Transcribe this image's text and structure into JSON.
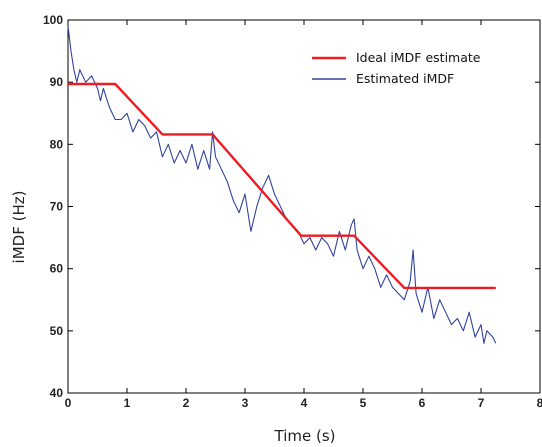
{
  "chart_data": {
    "type": "line",
    "title": "",
    "xlabel": "Time (s)",
    "ylabel": "iMDF (Hz)",
    "xlim": [
      0,
      8
    ],
    "ylim": [
      40,
      100
    ],
    "xticks": [
      "0",
      "1",
      "2",
      "3",
      "4",
      "5",
      "6",
      "7",
      "8"
    ],
    "yticks": [
      "40",
      "50",
      "60",
      "70",
      "80",
      "90",
      "100"
    ],
    "grid": false,
    "legend_position": "top-right",
    "series": [
      {
        "name": "Ideal iMDF estimate",
        "color": "#ee1c24",
        "x": [
          0,
          0.8,
          1.6,
          2.45,
          3.95,
          4.85,
          5.7,
          7.25
        ],
        "y": [
          89.7,
          89.7,
          81.6,
          81.6,
          65.3,
          65.3,
          56.9,
          56.9
        ]
      },
      {
        "name": "Estimated iMDF",
        "color": "#33429a",
        "x": [
          0,
          0.05,
          0.1,
          0.15,
          0.2,
          0.3,
          0.4,
          0.5,
          0.55,
          0.6,
          0.7,
          0.8,
          0.9,
          1.0,
          1.1,
          1.2,
          1.3,
          1.4,
          1.5,
          1.6,
          1.7,
          1.8,
          1.9,
          2.0,
          2.1,
          2.2,
          2.3,
          2.4,
          2.45,
          2.5,
          2.6,
          2.7,
          2.8,
          2.9,
          3.0,
          3.1,
          3.2,
          3.3,
          3.4,
          3.5,
          3.6,
          3.7,
          3.8,
          3.9,
          4.0,
          4.1,
          4.2,
          4.3,
          4.4,
          4.5,
          4.6,
          4.7,
          4.8,
          4.85,
          4.9,
          5.0,
          5.1,
          5.2,
          5.3,
          5.4,
          5.5,
          5.6,
          5.7,
          5.8,
          5.85,
          5.9,
          6.0,
          6.1,
          6.2,
          6.3,
          6.4,
          6.5,
          6.6,
          6.7,
          6.8,
          6.9,
          7.0,
          7.05,
          7.1,
          7.2,
          7.25
        ],
        "y": [
          99,
          95,
          92,
          90,
          92,
          90,
          91,
          89,
          87,
          89,
          86,
          84,
          84,
          85,
          82,
          84,
          83,
          81,
          82,
          78,
          80,
          77,
          79,
          77,
          80,
          76,
          79,
          76,
          82,
          78,
          76,
          74,
          71,
          69,
          72,
          66,
          70,
          73,
          75,
          72,
          70,
          68,
          67,
          66,
          64,
          65,
          63,
          65,
          64,
          62,
          66,
          63,
          67,
          68,
          63,
          60,
          62,
          60,
          57,
          59,
          57,
          56,
          55,
          58,
          63,
          56,
          53,
          57,
          52,
          55,
          53,
          51,
          52,
          50,
          53,
          49,
          51,
          48,
          50,
          49,
          48
        ]
      }
    ]
  }
}
